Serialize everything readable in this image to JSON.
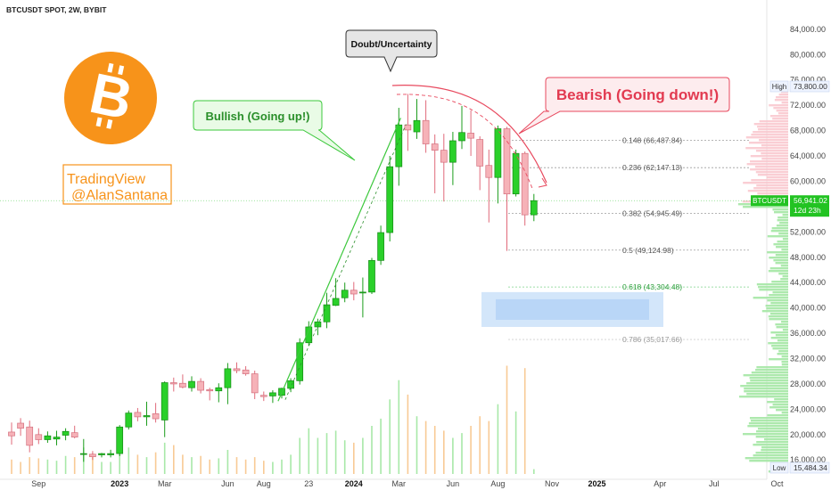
{
  "header": {
    "title": "BTCUSDT SPOT, 2W, BYBIT"
  },
  "watermark": {
    "line1": "TradingView",
    "line2": "@AlanSantana",
    "color": "#f7931a"
  },
  "logo": {
    "icon": "bitcoin-logo-icon",
    "color": "#f7931a"
  },
  "callouts": {
    "doubt": "Doubt/Uncertainty",
    "bullish": "Bullish (Going up!)",
    "bearish": "Bearish (Going down!)"
  },
  "price_tag": {
    "symbol": "BTCUSDT",
    "price": "56,941.02",
    "countdown": "12d 23h",
    "color": "#22c322"
  },
  "high_tag": {
    "label": "High",
    "value": "73,800.00"
  },
  "low_tag": {
    "label": "Low",
    "value": "15,484.34"
  },
  "colors": {
    "up": "#2ad02a",
    "down": "#f6b2b8",
    "bearish": "#e84a5f",
    "bullish": "#3cc83c",
    "support_zone": "#bcd8f7"
  },
  "chart_data": {
    "type": "candlestick",
    "ylim": [
      13500,
      87500
    ],
    "y_ticks": [
      16000,
      20000,
      24000,
      28000,
      32000,
      36000,
      40000,
      44000,
      48000,
      52000,
      56000,
      60000,
      64000,
      68000,
      72000,
      76000,
      80000,
      84000
    ],
    "y_tick_labels": [
      "16,000.00",
      "20,000.00",
      "24,000.00",
      "28,000.00",
      "32,000.00",
      "36,000.00",
      "40,000.00",
      "44,000.00",
      "48,000.00",
      "52,000.00",
      "56,000.00",
      "60,000.00",
      "64,000.00",
      "68,000.00",
      "72,000.00",
      "76,000.00",
      "80,000.00",
      "84,000.00"
    ],
    "x_ticks": [
      {
        "label": "Sep",
        "i": 3,
        "bold": false
      },
      {
        "label": "2023",
        "i": 12,
        "bold": true
      },
      {
        "label": "Mar",
        "i": 17,
        "bold": false
      },
      {
        "label": "Jun",
        "i": 24,
        "bold": false
      },
      {
        "label": "Aug",
        "i": 28,
        "bold": false
      },
      {
        "label": "23",
        "i": 33,
        "bold": false
      },
      {
        "label": "2024",
        "i": 38,
        "bold": true
      },
      {
        "label": "Mar",
        "i": 43,
        "bold": false
      },
      {
        "label": "Jun",
        "i": 49,
        "bold": false
      },
      {
        "label": "Aug",
        "i": 54,
        "bold": false
      },
      {
        "label": "Nov",
        "i": 60,
        "bold": false
      },
      {
        "label": "2025",
        "i": 65,
        "bold": true
      },
      {
        "label": "Apr",
        "i": 72,
        "bold": false
      },
      {
        "label": "Jul",
        "i": 78,
        "bold": false
      },
      {
        "label": "Oct",
        "i": 85,
        "bold": false
      }
    ],
    "candles": [
      {
        "o": 20400,
        "h": 21900,
        "l": 18400,
        "c": 19800
      },
      {
        "o": 21800,
        "h": 22600,
        "l": 19800,
        "c": 21000
      },
      {
        "o": 21200,
        "h": 22200,
        "l": 17200,
        "c": 18300
      },
      {
        "o": 20000,
        "h": 21000,
        "l": 18500,
        "c": 19200
      },
      {
        "o": 19200,
        "h": 20500,
        "l": 18700,
        "c": 19800
      },
      {
        "o": 19300,
        "h": 20600,
        "l": 18300,
        "c": 19600
      },
      {
        "o": 19900,
        "h": 21000,
        "l": 19100,
        "c": 20500
      },
      {
        "o": 20300,
        "h": 21400,
        "l": 19400,
        "c": 19600
      },
      {
        "o": 17000,
        "h": 19300,
        "l": 15700,
        "c": 17000
      },
      {
        "o": 16900,
        "h": 17400,
        "l": 16000,
        "c": 16500
      },
      {
        "o": 16800,
        "h": 17100,
        "l": 16400,
        "c": 17000
      },
      {
        "o": 16800,
        "h": 17600,
        "l": 16400,
        "c": 17000
      },
      {
        "o": 17000,
        "h": 21500,
        "l": 16600,
        "c": 21200
      },
      {
        "o": 21200,
        "h": 23800,
        "l": 20800,
        "c": 23400
      },
      {
        "o": 23500,
        "h": 24200,
        "l": 22100,
        "c": 22800
      },
      {
        "o": 22800,
        "h": 25200,
        "l": 21400,
        "c": 23000
      },
      {
        "o": 23300,
        "h": 25000,
        "l": 21900,
        "c": 22500
      },
      {
        "o": 22300,
        "h": 28400,
        "l": 19600,
        "c": 28200
      },
      {
        "o": 28200,
        "h": 29000,
        "l": 26800,
        "c": 28000
      },
      {
        "o": 28100,
        "h": 29500,
        "l": 27300,
        "c": 27500
      },
      {
        "o": 27400,
        "h": 29200,
        "l": 26800,
        "c": 28400
      },
      {
        "o": 28400,
        "h": 28900,
        "l": 26500,
        "c": 27000
      },
      {
        "o": 27100,
        "h": 27400,
        "l": 25400,
        "c": 26900
      },
      {
        "o": 26900,
        "h": 28100,
        "l": 25100,
        "c": 27400
      },
      {
        "o": 27400,
        "h": 31300,
        "l": 24800,
        "c": 30400
      },
      {
        "o": 30400,
        "h": 31400,
        "l": 29700,
        "c": 30100
      },
      {
        "o": 30200,
        "h": 30800,
        "l": 29300,
        "c": 29600
      },
      {
        "o": 29600,
        "h": 30100,
        "l": 25600,
        "c": 26600
      },
      {
        "o": 26200,
        "h": 26800,
        "l": 25300,
        "c": 26000
      },
      {
        "o": 26100,
        "h": 27000,
        "l": 25000,
        "c": 26600
      },
      {
        "o": 26200,
        "h": 27400,
        "l": 25700,
        "c": 27300
      },
      {
        "o": 27300,
        "h": 28900,
        "l": 26700,
        "c": 28500
      },
      {
        "o": 28500,
        "h": 35200,
        "l": 27900,
        "c": 34500
      },
      {
        "o": 34500,
        "h": 37900,
        "l": 34000,
        "c": 37000
      },
      {
        "o": 37000,
        "h": 38300,
        "l": 35700,
        "c": 37800
      },
      {
        "o": 37800,
        "h": 42400,
        "l": 36800,
        "c": 40500
      },
      {
        "o": 40400,
        "h": 44700,
        "l": 40300,
        "c": 41500
      },
      {
        "o": 41600,
        "h": 44000,
        "l": 40900,
        "c": 42800
      },
      {
        "o": 42800,
        "h": 44100,
        "l": 41200,
        "c": 42200
      },
      {
        "o": 42400,
        "h": 44800,
        "l": 38500,
        "c": 42500
      },
      {
        "o": 42500,
        "h": 47900,
        "l": 42200,
        "c": 47500
      },
      {
        "o": 47500,
        "h": 53000,
        "l": 46800,
        "c": 51900
      },
      {
        "o": 51900,
        "h": 64000,
        "l": 50500,
        "c": 62300
      },
      {
        "o": 62300,
        "h": 71600,
        "l": 59300,
        "c": 68900
      },
      {
        "o": 68900,
        "h": 73800,
        "l": 64800,
        "c": 68100
      },
      {
        "o": 67800,
        "h": 73000,
        "l": 66700,
        "c": 69600
      },
      {
        "o": 69600,
        "h": 72800,
        "l": 64500,
        "c": 65900
      },
      {
        "o": 65900,
        "h": 67400,
        "l": 58100,
        "c": 64900
      },
      {
        "o": 64900,
        "h": 67500,
        "l": 56800,
        "c": 63000
      },
      {
        "o": 63000,
        "h": 67800,
        "l": 59400,
        "c": 66400
      },
      {
        "o": 66400,
        "h": 71900,
        "l": 65100,
        "c": 67700
      },
      {
        "o": 67600,
        "h": 71200,
        "l": 64000,
        "c": 66800
      },
      {
        "o": 66600,
        "h": 67100,
        "l": 58600,
        "c": 62400
      },
      {
        "o": 62500,
        "h": 65000,
        "l": 53500,
        "c": 60600
      },
      {
        "o": 60600,
        "h": 68800,
        "l": 56500,
        "c": 68300
      },
      {
        "o": 68300,
        "h": 68600,
        "l": 49000,
        "c": 58000
      },
      {
        "o": 58000,
        "h": 65000,
        "l": 57600,
        "c": 64400
      },
      {
        "o": 64400,
        "h": 64700,
        "l": 53000,
        "c": 54700
      },
      {
        "o": 54700,
        "h": 58000,
        "l": 53700,
        "c": 56941
      }
    ],
    "volumes": [
      0.12,
      0.1,
      0.14,
      0.13,
      0.12,
      0.11,
      0.15,
      0.14,
      0.22,
      0.17,
      0.1,
      0.1,
      0.3,
      0.22,
      0.16,
      0.14,
      0.18,
      0.26,
      0.24,
      0.16,
      0.14,
      0.15,
      0.12,
      0.13,
      0.2,
      0.14,
      0.12,
      0.14,
      0.11,
      0.1,
      0.12,
      0.16,
      0.3,
      0.38,
      0.3,
      0.34,
      0.36,
      0.28,
      0.26,
      0.3,
      0.4,
      0.46,
      0.62,
      0.78,
      0.66,
      0.48,
      0.44,
      0.4,
      0.36,
      0.3,
      0.34,
      0.4,
      0.48,
      0.44,
      0.58,
      0.9,
      0.52,
      0.88,
      0.04
    ],
    "fibonacci": [
      {
        "ratio": "0.148",
        "label": "0.148 (66,487.84)",
        "price": 66487.84,
        "style": "normal"
      },
      {
        "ratio": "0.236",
        "label": "0.236 (62,147.13)",
        "price": 62147.13,
        "style": "normal"
      },
      {
        "ratio": "0.382",
        "label": "0.382 (54,945.49)",
        "price": 54945.49,
        "style": "normal"
      },
      {
        "ratio": "0.5",
        "label": "0.5 (49,124.98)",
        "price": 49124.98,
        "style": "normal"
      },
      {
        "ratio": "0.618",
        "label": "0.618 (43,304.48)",
        "price": 43304.48,
        "style": "green"
      },
      {
        "ratio": "0.786",
        "label": "0.786 (35,017.66)",
        "price": 35017.66,
        "style": "faint"
      }
    ],
    "support_zone": {
      "from": 37000,
      "to": 42500
    },
    "grid": false
  }
}
